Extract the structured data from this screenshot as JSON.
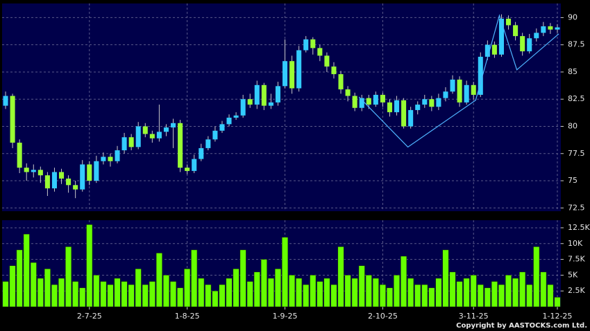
{
  "chart_data": {
    "type": "candlestick",
    "categories": [
      null,
      null,
      null,
      null,
      null,
      null,
      null,
      null,
      null,
      null,
      null,
      null,
      "2-7-25",
      null,
      null,
      null,
      null,
      null,
      null,
      null,
      null,
      null,
      null,
      null,
      null,
      null,
      "1-8-25",
      null,
      null,
      null,
      null,
      null,
      null,
      null,
      null,
      null,
      null,
      null,
      null,
      null,
      "1-9-25",
      null,
      null,
      null,
      null,
      null,
      null,
      null,
      null,
      null,
      null,
      null,
      null,
      null,
      "2-10-25",
      null,
      null,
      null,
      null,
      null,
      null,
      null,
      null,
      null,
      null,
      null,
      null,
      "3-11-25",
      null,
      null,
      null,
      null,
      null,
      null,
      null,
      null,
      null,
      null,
      null,
      "1-12-25"
    ],
    "open": [
      81.9,
      82.8,
      78.5,
      76.2,
      75.8,
      76.0,
      75.5,
      74.3,
      75.8,
      75.2,
      74.6,
      74.2,
      76.5,
      75.0,
      76.8,
      77.2,
      76.8,
      77.8,
      79.0,
      78.1,
      80.0,
      79.3,
      78.9,
      79.5,
      79.9,
      80.3,
      76.2,
      75.9,
      77.0,
      78.0,
      78.8,
      79.6,
      80.2,
      80.8,
      81.0,
      82.5,
      82.0,
      83.8,
      81.9,
      82.2,
      83.7,
      86.0,
      83.5,
      87.0,
      88.0,
      87.2,
      86.5,
      85.5,
      84.8,
      83.4,
      82.8,
      81.7,
      82.6,
      82.0,
      82.9,
      82.2,
      81.3,
      82.4,
      80.0,
      81.5,
      82.0,
      82.5,
      81.8,
      82.6,
      83.2,
      84.3,
      82.2,
      83.8,
      82.9,
      86.4,
      87.5,
      86.6,
      89.9,
      89.3,
      88.3,
      86.9,
      88.1,
      88.6,
      89.2,
      88.9
    ],
    "high": [
      83.2,
      83.0,
      78.8,
      76.6,
      76.5,
      76.3,
      75.8,
      76.2,
      76.1,
      75.5,
      75.0,
      76.9,
      76.8,
      77.3,
      77.6,
      77.5,
      78.2,
      79.4,
      79.3,
      80.4,
      80.3,
      79.6,
      82.0,
      80.2,
      80.7,
      80.6,
      76.5,
      77.4,
      78.4,
      79.1,
      80.0,
      80.5,
      81.1,
      81.3,
      82.9,
      83.0,
      84.2,
      84.0,
      83.0,
      84.1,
      88.0,
      86.5,
      87.4,
      88.3,
      88.2,
      87.5,
      86.8,
      85.9,
      85.1,
      83.7,
      83.1,
      82.9,
      82.9,
      83.2,
      83.1,
      82.5,
      82.8,
      82.6,
      81.8,
      82.3,
      82.9,
      82.8,
      83.0,
      83.6,
      84.7,
      84.6,
      84.2,
      84.1,
      86.8,
      87.9,
      87.8,
      90.3,
      90.2,
      89.6,
      88.6,
      88.5,
      89.0,
      89.6,
      89.5,
      89.4
    ],
    "low": [
      81.6,
      78.0,
      75.7,
      75.0,
      75.3,
      74.8,
      73.6,
      74.0,
      74.7,
      73.9,
      73.4,
      74.0,
      74.6,
      74.8,
      76.5,
      76.3,
      76.6,
      77.5,
      77.8,
      77.9,
      79.0,
      78.5,
      78.6,
      79.1,
      78.0,
      75.8,
      75.6,
      75.7,
      76.8,
      77.8,
      78.6,
      79.4,
      80.0,
      80.6,
      80.8,
      81.7,
      81.6,
      81.5,
      81.6,
      81.9,
      83.5,
      83.0,
      83.2,
      86.8,
      86.6,
      86.0,
      85.0,
      84.4,
      83.0,
      82.3,
      81.4,
      81.4,
      81.6,
      81.8,
      81.8,
      80.9,
      81.0,
      79.8,
      79.8,
      81.1,
      81.7,
      81.4,
      81.5,
      82.3,
      83.0,
      81.8,
      82.0,
      82.5,
      82.7,
      86.1,
      86.3,
      86.4,
      88.9,
      87.9,
      86.5,
      86.7,
      87.8,
      88.3,
      88.5,
      88.6
    ],
    "close": [
      82.8,
      78.5,
      76.2,
      75.8,
      76.0,
      75.5,
      74.3,
      75.8,
      75.2,
      74.6,
      74.2,
      76.5,
      75.0,
      76.8,
      77.2,
      76.8,
      77.8,
      79.0,
      78.1,
      80.0,
      79.3,
      78.9,
      79.5,
      79.9,
      80.3,
      76.2,
      75.9,
      77.0,
      78.0,
      78.8,
      79.6,
      80.2,
      80.8,
      81.0,
      82.5,
      82.0,
      83.8,
      81.9,
      82.2,
      83.7,
      86.0,
      83.5,
      87.0,
      88.0,
      87.2,
      86.5,
      85.5,
      84.8,
      83.4,
      82.8,
      81.7,
      82.6,
      82.0,
      82.9,
      82.2,
      81.3,
      82.4,
      80.0,
      81.5,
      82.0,
      82.5,
      81.8,
      82.6,
      83.2,
      84.3,
      82.2,
      83.8,
      82.9,
      86.4,
      87.5,
      86.6,
      89.9,
      89.3,
      88.3,
      86.9,
      88.1,
      88.6,
      89.2,
      88.9,
      89.1
    ],
    "up_color": "#33ccff",
    "down_color": "#99ff33",
    "ylim": [
      72.2,
      91.3
    ],
    "yticks": [
      72.5,
      75,
      77.5,
      80,
      82.5,
      85,
      87.5,
      90
    ],
    "grid": true,
    "trendline": {
      "color": "#4fb4ff",
      "x": [
        50.6,
        57.6,
        67.3,
        70.7,
        73.2,
        79.2
      ],
      "y": [
        82.7,
        78.1,
        82.4,
        90.2,
        85.2,
        88.5
      ]
    },
    "volume": {
      "type": "bar",
      "color": "#66ff00",
      "values": [
        4000,
        6500,
        9000,
        11500,
        7000,
        4500,
        6000,
        3500,
        4500,
        9500,
        4000,
        3000,
        13000,
        5000,
        4000,
        3500,
        4500,
        4000,
        3500,
        6000,
        3500,
        4000,
        8500,
        5000,
        4000,
        3000,
        6000,
        9000,
        4500,
        3500,
        2500,
        3500,
        4500,
        6000,
        9000,
        4000,
        5500,
        7500,
        4500,
        6000,
        11000,
        5000,
        4500,
        3500,
        5000,
        4000,
        4500,
        3500,
        9500,
        5000,
        4500,
        6500,
        5000,
        4500,
        3500,
        3000,
        5000,
        8000,
        4500,
        3500,
        3500,
        3000,
        4500,
        9000,
        5500,
        4000,
        4500,
        5000,
        3500,
        3000,
        4000,
        3500,
        5000,
        4500,
        5500,
        3500,
        9500,
        5500,
        3500,
        1500
      ],
      "ylim": [
        0,
        13700
      ],
      "yticks": [
        {
          "value": 2500,
          "label": "2.5K"
        },
        {
          "value": 5000,
          "label": "5K"
        },
        {
          "value": 7500,
          "label": "7.5K"
        },
        {
          "value": 10000,
          "label": "10K"
        },
        {
          "value": 12500,
          "label": "12.5K"
        }
      ]
    },
    "copyright": "Copyright by AASTOCKS.com Ltd."
  }
}
